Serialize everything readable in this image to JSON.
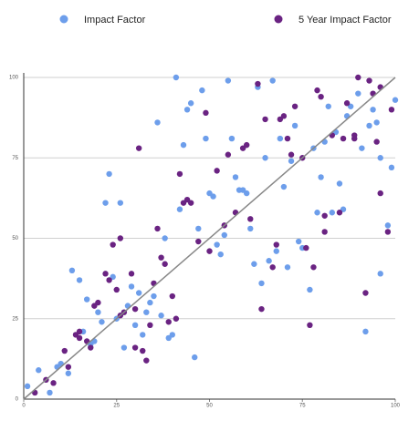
{
  "chart_data": {
    "type": "scatter",
    "xlim": [
      0,
      100
    ],
    "ylim": [
      0,
      100
    ],
    "xticks": [
      0,
      25,
      50,
      75,
      100
    ],
    "yticks": [
      0,
      25,
      50,
      75,
      100
    ],
    "grid": true,
    "identity_line": true,
    "legend": "top",
    "series": [
      {
        "name": "Impact Factor",
        "color": "#6d9eeb",
        "x": [
          1,
          4,
          7,
          9,
          10,
          12,
          13,
          15,
          16,
          17,
          18,
          19,
          20,
          21,
          22,
          23,
          24,
          25,
          26,
          27,
          28,
          29,
          30,
          31,
          32,
          33,
          34,
          35,
          36,
          37,
          38,
          39,
          40,
          41,
          42,
          43,
          44,
          45,
          46,
          47,
          48,
          49,
          50,
          51,
          52,
          53,
          54,
          55,
          56,
          57,
          58,
          59,
          60,
          61,
          62,
          63,
          64,
          65,
          66,
          67,
          68,
          69,
          70,
          71,
          72,
          73,
          74,
          75,
          77,
          78,
          79,
          80,
          81,
          82,
          83,
          84,
          85,
          86,
          87,
          88,
          90,
          91,
          92,
          93,
          94,
          95,
          96,
          96,
          98,
          99,
          100
        ],
        "values": [
          4,
          9,
          2,
          10,
          11,
          8,
          40,
          37,
          21,
          31,
          17,
          18,
          27,
          24,
          61,
          70,
          38,
          25,
          61,
          16,
          29,
          35,
          23,
          33,
          20,
          27,
          30,
          32,
          86,
          26,
          50,
          19,
          20,
          100,
          59,
          79,
          90,
          92,
          13,
          53,
          96,
          81,
          64,
          63,
          48,
          45,
          51,
          99,
          81,
          69,
          65,
          65,
          64,
          53,
          42,
          97,
          36,
          75,
          43,
          99,
          46,
          81,
          66,
          41,
          74,
          85,
          49,
          47,
          34,
          78,
          58,
          69,
          80,
          91,
          58,
          83,
          67,
          59,
          88,
          91,
          95,
          78,
          21,
          85,
          90,
          86,
          75,
          39,
          54,
          72,
          93
        ]
      },
      {
        "name": "5 Year Impact Factor",
        "color": "#6a2382",
        "x": [
          3,
          6,
          8,
          11,
          12,
          14,
          15,
          15,
          17,
          18,
          19,
          20,
          22,
          23,
          24,
          25,
          26,
          26,
          27,
          29,
          30,
          30,
          31,
          32,
          33,
          34,
          35,
          36,
          37,
          38,
          39,
          40,
          41,
          42,
          43,
          44,
          45,
          47,
          49,
          50,
          52,
          54,
          55,
          57,
          59,
          60,
          61,
          63,
          64,
          65,
          67,
          68,
          69,
          70,
          71,
          72,
          73,
          75,
          76,
          77,
          78,
          79,
          80,
          81,
          81,
          83,
          85,
          86,
          87,
          89,
          89,
          90,
          92,
          93,
          94,
          95,
          96,
          96,
          98,
          99
        ],
        "values": [
          2,
          6,
          5,
          15,
          10,
          20,
          21,
          19,
          18,
          16,
          29,
          30,
          39,
          37,
          48,
          34,
          26,
          50,
          27,
          39,
          28,
          16,
          78,
          15,
          12,
          23,
          36,
          53,
          44,
          42,
          24,
          32,
          25,
          70,
          61,
          62,
          61,
          49,
          89,
          46,
          71,
          54,
          76,
          58,
          78,
          79,
          56,
          98,
          28,
          87,
          41,
          48,
          87,
          88,
          81,
          76,
          91,
          75,
          47,
          23,
          41,
          96,
          94,
          57,
          52,
          82,
          58,
          81,
          92,
          81,
          82,
          100,
          33,
          99,
          95,
          80,
          97,
          64,
          52,
          90
        ]
      }
    ]
  }
}
